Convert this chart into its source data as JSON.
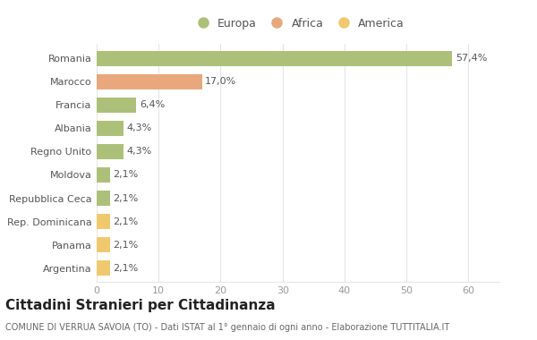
{
  "categories": [
    "Romania",
    "Marocco",
    "Francia",
    "Albania",
    "Regno Unito",
    "Moldova",
    "Repubblica Ceca",
    "Rep. Dominicana",
    "Panama",
    "Argentina"
  ],
  "values": [
    57.4,
    17.0,
    6.4,
    4.3,
    4.3,
    2.1,
    2.1,
    2.1,
    2.1,
    2.1
  ],
  "labels": [
    "57,4%",
    "17,0%",
    "6,4%",
    "4,3%",
    "4,3%",
    "2,1%",
    "2,1%",
    "2,1%",
    "2,1%",
    "2,1%"
  ],
  "colors": [
    "#adc07a",
    "#e8a87c",
    "#adc07a",
    "#adc07a",
    "#adc07a",
    "#adc07a",
    "#adc07a",
    "#f0c96e",
    "#f0c96e",
    "#f0c96e"
  ],
  "legend_labels": [
    "Europa",
    "Africa",
    "America"
  ],
  "legend_colors": [
    "#adc07a",
    "#e8a87c",
    "#f0c96e"
  ],
  "title": "Cittadini Stranieri per Cittadinanza",
  "subtitle": "COMUNE DI VERRUA SAVOIA (TO) - Dati ISTAT al 1° gennaio di ogni anno - Elaborazione TUTTITALIA.IT",
  "xlim": [
    0,
    65
  ],
  "xticks": [
    0,
    10,
    20,
    30,
    40,
    50,
    60
  ],
  "background_color": "#ffffff",
  "grid_color": "#e5e5e5",
  "bar_height": 0.65,
  "label_fontsize": 8,
  "tick_fontsize": 8,
  "title_fontsize": 11,
  "subtitle_fontsize": 7
}
